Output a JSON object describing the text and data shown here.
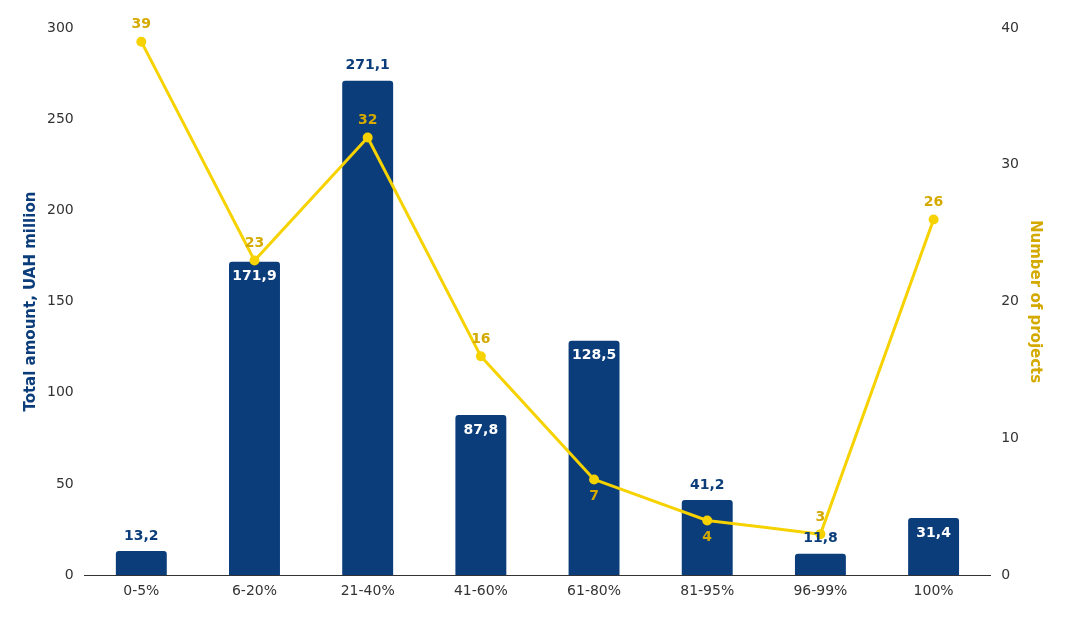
{
  "chart_data": {
    "type": "bar",
    "categories": [
      "0-5%",
      "6-20%",
      "21-40%",
      "41-60%",
      "61-80%",
      "81-95%",
      "96-99%",
      "100%"
    ],
    "series": [
      {
        "color": "#0b3d7a",
        "values": [
          13.2,
          171.9,
          271.1,
          87.8,
          128.5,
          41.2,
          11.8,
          31.4
        ],
        "value_labels": [
          "13,2",
          "171,9",
          "271,1",
          "87,8",
          "128,5",
          "41,2",
          "11,8",
          "31,4"
        ]
      },
      {
        "type": "line",
        "axis": "y2",
        "color": "#f6d200",
        "values": [
          39,
          23,
          32,
          16,
          7,
          4,
          3,
          26
        ],
        "value_labels": [
          "39",
          "23",
          "32",
          "16",
          "7",
          "4",
          "3",
          "26"
        ]
      }
    ],
    "ylabel": "Total amount, UAH million",
    "y2label": "Number of projects",
    "ylim": [
      0,
      300
    ],
    "yticks": [
      0,
      50,
      100,
      150,
      200,
      250,
      300
    ],
    "y2lim": [
      0,
      40
    ],
    "y2ticks": [
      0,
      10,
      20,
      30,
      40
    ],
    "grid": false,
    "legend": false,
    "marker": "circle",
    "line_style": "solid"
  }
}
